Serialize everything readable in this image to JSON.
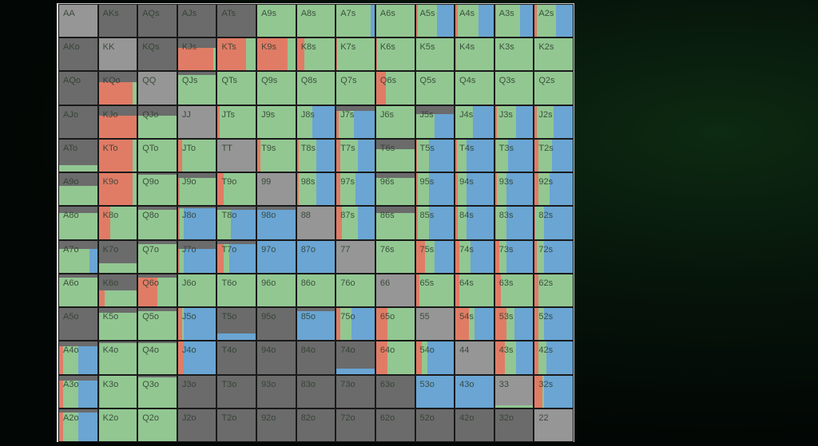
{
  "colors": {
    "fold": "#6b6b6b",
    "pair_fold": "#969696",
    "red": "#e07c66",
    "green": "#92c792",
    "blue": "#6aa5d3"
  },
  "grid": {
    "rows": [
      [
        [
          "AA",
          100,
          0,
          0
        ],
        [
          "AKs",
          100,
          0,
          0
        ],
        [
          "AQs",
          100,
          0,
          0
        ],
        [
          "AJs",
          100,
          0,
          0
        ],
        [
          "ATs",
          100,
          0,
          0
        ],
        [
          "A9s",
          0,
          0,
          0
        ],
        [
          "A8s",
          0,
          0,
          0
        ],
        [
          "A7s",
          0,
          0,
          10
        ],
        [
          "A6s",
          0,
          0,
          0
        ],
        [
          "A5s",
          0,
          5,
          45
        ],
        [
          "A4s",
          0,
          5,
          40
        ],
        [
          "A3s",
          0,
          3,
          35
        ],
        [
          "A2s",
          0,
          5,
          45
        ]
      ],
      [
        [
          "AKo",
          100,
          0,
          0
        ],
        [
          "KK",
          100,
          0,
          0
        ],
        [
          "KQs",
          100,
          0,
          0
        ],
        [
          "KJs",
          30,
          92,
          0
        ],
        [
          "KTs",
          0,
          75,
          0
        ],
        [
          "K9s",
          0,
          80,
          0
        ],
        [
          "K8s",
          0,
          20,
          0
        ],
        [
          "K7s",
          0,
          2,
          0
        ],
        [
          "K6s",
          0,
          2,
          0
        ],
        [
          "K5s",
          0,
          2,
          0
        ],
        [
          "K4s",
          0,
          2,
          0
        ],
        [
          "K3s",
          0,
          0,
          0
        ],
        [
          "K2s",
          0,
          0,
          0
        ]
      ],
      [
        [
          "AQo",
          100,
          0,
          0
        ],
        [
          "KQo",
          30,
          90,
          0
        ],
        [
          "QQ",
          100,
          0,
          0
        ],
        [
          "QJs",
          10,
          0,
          0
        ],
        [
          "QTs",
          0,
          0,
          0
        ],
        [
          "Q9s",
          0,
          0,
          0
        ],
        [
          "Q8s",
          0,
          0,
          0
        ],
        [
          "Q7s",
          0,
          0,
          0
        ],
        [
          "Q6s",
          0,
          25,
          0
        ],
        [
          "Q5s",
          0,
          0,
          0
        ],
        [
          "Q4s",
          0,
          0,
          0
        ],
        [
          "Q3s",
          0,
          0,
          0
        ],
        [
          "Q2s",
          0,
          0,
          0
        ]
      ],
      [
        [
          "AJo",
          100,
          0,
          0
        ],
        [
          "KJo",
          30,
          100,
          0
        ],
        [
          "QJo",
          30,
          0,
          0
        ],
        [
          "JJ",
          100,
          0,
          0
        ],
        [
          "JTs",
          0,
          5,
          0
        ],
        [
          "J9s",
          0,
          0,
          0
        ],
        [
          "J8s",
          0,
          0,
          60
        ],
        [
          "J7s",
          15,
          5,
          55
        ],
        [
          "J6s",
          0,
          0,
          0
        ],
        [
          "J5s",
          25,
          2,
          50
        ],
        [
          "J4s",
          0,
          0,
          55
        ],
        [
          "J3s",
          0,
          5,
          45
        ],
        [
          "J2s",
          0,
          5,
          50
        ]
      ],
      [
        [
          "ATo",
          80,
          0,
          0
        ],
        [
          "KTo",
          0,
          90,
          0
        ],
        [
          "QTo",
          0,
          0,
          0
        ],
        [
          "JTo",
          0,
          10,
          0
        ],
        [
          "TT",
          100,
          0,
          0
        ],
        [
          "T9s",
          0,
          8,
          0
        ],
        [
          "T8s",
          0,
          5,
          50
        ],
        [
          "T7s",
          0,
          10,
          45
        ],
        [
          "T6s",
          30,
          0,
          0
        ],
        [
          "T5s",
          0,
          3,
          65
        ],
        [
          "T4s",
          0,
          3,
          70
        ],
        [
          "T3s",
          0,
          3,
          65
        ],
        [
          "T2s",
          0,
          10,
          55
        ]
      ],
      [
        [
          "A9o",
          40,
          0,
          0
        ],
        [
          "K9o",
          0,
          90,
          0
        ],
        [
          "Q9o",
          5,
          0,
          0
        ],
        [
          "J9o",
          15,
          5,
          0
        ],
        [
          "T9o",
          0,
          15,
          0
        ],
        [
          "99",
          100,
          0,
          0
        ],
        [
          "98s",
          0,
          5,
          50
        ],
        [
          "97s",
          0,
          10,
          50
        ],
        [
          "96s",
          15,
          0,
          0
        ],
        [
          "95s",
          0,
          5,
          65
        ],
        [
          "94s",
          0,
          5,
          70
        ],
        [
          "93s",
          0,
          5,
          70
        ],
        [
          "92s",
          0,
          10,
          60
        ]
      ],
      [
        [
          "A8o",
          20,
          0,
          0
        ],
        [
          "K8o",
          0,
          30,
          0
        ],
        [
          "Q8o",
          10,
          0,
          0
        ],
        [
          "J8o",
          5,
          5,
          85
        ],
        [
          "T8o",
          10,
          0,
          65
        ],
        [
          "98o",
          10,
          0,
          100
        ],
        [
          "88",
          100,
          0,
          0
        ],
        [
          "87s",
          0,
          15,
          45
        ],
        [
          "86s",
          20,
          0,
          0
        ],
        [
          "85s",
          0,
          5,
          65
        ],
        [
          "84s",
          0,
          5,
          70
        ],
        [
          "83s",
          0,
          2,
          70
        ],
        [
          "82s",
          0,
          2,
          75
        ]
      ],
      [
        [
          "A7o",
          25,
          0,
          20
        ],
        [
          "K7o",
          70,
          0,
          0
        ],
        [
          "Q7o",
          10,
          0,
          0
        ],
        [
          "J7o",
          25,
          5,
          85
        ],
        [
          "T7o",
          10,
          15,
          70
        ],
        [
          "97o",
          0,
          0,
          100
        ],
        [
          "87o",
          0,
          0,
          100
        ],
        [
          "77",
          100,
          0,
          0
        ],
        [
          "76s",
          0,
          0,
          0
        ],
        [
          "75s",
          0,
          25,
          50
        ],
        [
          "74s",
          0,
          10,
          60
        ],
        [
          "73s",
          0,
          10,
          70
        ],
        [
          "72s",
          0,
          5,
          75
        ]
      ],
      [
        [
          "A6o",
          10,
          0,
          0
        ],
        [
          "K6o",
          50,
          15,
          0
        ],
        [
          "Q6o",
          10,
          50,
          0
        ],
        [
          "J6o",
          0,
          0,
          0
        ],
        [
          "T6o",
          0,
          0,
          0
        ],
        [
          "96o",
          0,
          0,
          0
        ],
        [
          "86o",
          0,
          0,
          0
        ],
        [
          "76o",
          0,
          0,
          0
        ],
        [
          "66",
          100,
          0,
          0
        ],
        [
          "65s",
          0,
          10,
          0
        ],
        [
          "64s",
          0,
          10,
          0
        ],
        [
          "63s",
          0,
          15,
          0
        ],
        [
          "62s",
          0,
          10,
          0
        ]
      ],
      [
        [
          "A5o",
          100,
          0,
          0
        ],
        [
          "K5o",
          15,
          0,
          0
        ],
        [
          "Q5o",
          10,
          0,
          0
        ],
        [
          "J5o",
          0,
          10,
          85
        ],
        [
          "T5o",
          80,
          0,
          100
        ],
        [
          "95o",
          100,
          0,
          0
        ],
        [
          "85o",
          10,
          0,
          100
        ],
        [
          "75o",
          0,
          10,
          60
        ],
        [
          "65o",
          0,
          30,
          0
        ],
        [
          "55",
          100,
          0,
          0
        ],
        [
          "54s",
          0,
          35,
          50
        ],
        [
          "53s",
          0,
          30,
          50
        ],
        [
          "52s",
          0,
          10,
          75
        ]
      ],
      [
        [
          "A4o",
          15,
          10,
          50
        ],
        [
          "K4o",
          5,
          2,
          0
        ],
        [
          "Q4o",
          5,
          0,
          0
        ],
        [
          "J4o",
          0,
          15,
          85
        ],
        [
          "T4o",
          100,
          0,
          0
        ],
        [
          "94o",
          100,
          0,
          0
        ],
        [
          "84o",
          100,
          0,
          0
        ],
        [
          "74o",
          85,
          0,
          100
        ],
        [
          "64o",
          0,
          30,
          0
        ],
        [
          "54o",
          0,
          15,
          70
        ],
        [
          "44",
          100,
          0,
          0
        ],
        [
          "43s",
          0,
          25,
          45
        ],
        [
          "42s",
          0,
          10,
          70
        ]
      ],
      [
        [
          "A3o",
          15,
          10,
          50
        ],
        [
          "K3o",
          0,
          2,
          0
        ],
        [
          "Q3o",
          5,
          0,
          0
        ],
        [
          "J3o",
          100,
          0,
          0
        ],
        [
          "T3o",
          100,
          0,
          0
        ],
        [
          "93o",
          100,
          0,
          0
        ],
        [
          "83o",
          100,
          0,
          0
        ],
        [
          "73o",
          100,
          0,
          0
        ],
        [
          "63o",
          100,
          0,
          0
        ],
        [
          "53o",
          0,
          0,
          100
        ],
        [
          "43o",
          0,
          0,
          100
        ],
        [
          "33",
          92,
          0,
          0
        ],
        [
          "32s",
          0,
          20,
          75
        ]
      ],
      [
        [
          "A2o",
          10,
          10,
          50
        ],
        [
          "K2o",
          0,
          0,
          0
        ],
        [
          "Q2o",
          0,
          0,
          0
        ],
        [
          "J2o",
          100,
          0,
          0
        ],
        [
          "T2o",
          100,
          0,
          0
        ],
        [
          "92o",
          100,
          0,
          0
        ],
        [
          "82o",
          100,
          0,
          0
        ],
        [
          "72o",
          100,
          0,
          0
        ],
        [
          "62o",
          100,
          0,
          0
        ],
        [
          "52o",
          100,
          0,
          0
        ],
        [
          "42o",
          100,
          0,
          0
        ],
        [
          "32o",
          100,
          0,
          0
        ],
        [
          "22",
          100,
          0,
          0
        ]
      ]
    ]
  }
}
